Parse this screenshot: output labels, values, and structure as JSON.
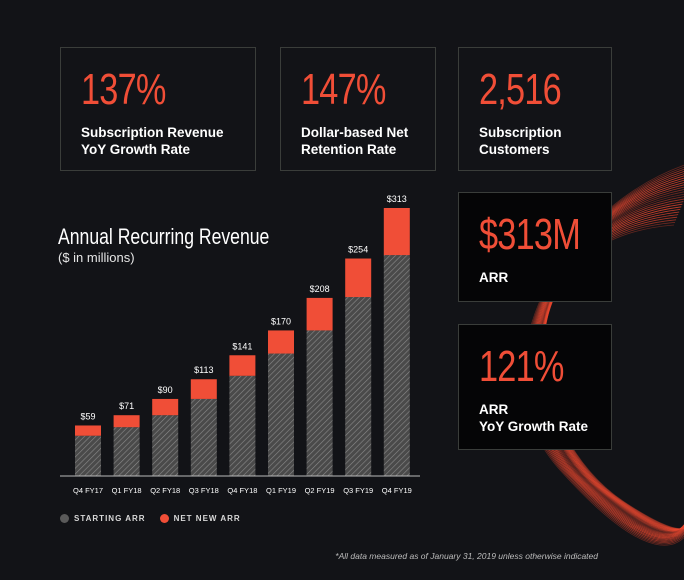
{
  "stats": [
    {
      "value": "137%",
      "label": "Subscription Revenue\nYoY Growth Rate"
    },
    {
      "value": "147%",
      "label": "Dollar-based Net\nRetention Rate"
    },
    {
      "value": "2,516",
      "label": "Subscription\nCustomers"
    },
    {
      "value": "$313M",
      "label": "ARR"
    },
    {
      "value": "121%",
      "label": "ARR\nYoY Growth Rate"
    }
  ],
  "chart_data": {
    "type": "bar",
    "stacked": true,
    "title": "Annual Recurring Revenue",
    "subtitle": "($ in millions)",
    "categories": [
      "Q4 FY17",
      "Q1 FY18",
      "Q2 FY18",
      "Q3 FY18",
      "Q4 FY18",
      "Q1 FY19",
      "Q2 FY19",
      "Q3 FY19",
      "Q4 FY19"
    ],
    "totals_labels": [
      "$59",
      "$71",
      "$90",
      "$113",
      "$141",
      "$170",
      "$208",
      "$254",
      "$313"
    ],
    "series": [
      {
        "name": "STARTING ARR",
        "values": [
          47,
          57,
          71,
          90,
          117,
          143,
          170,
          209,
          258
        ],
        "color": "#5a5a5a"
      },
      {
        "name": "NET NEW ARR",
        "values": [
          12,
          14,
          19,
          23,
          24,
          27,
          38,
          45,
          55
        ],
        "color": "#f04e37"
      }
    ],
    "ylim": [
      0,
      313
    ],
    "legend_position": "bottom-left"
  },
  "footnote": "*All data measured as of January 31, 2019 unless otherwise indicated",
  "colors": {
    "accent": "#f04e37",
    "background": "#121317",
    "bar_dark": "#5a5a5a"
  }
}
